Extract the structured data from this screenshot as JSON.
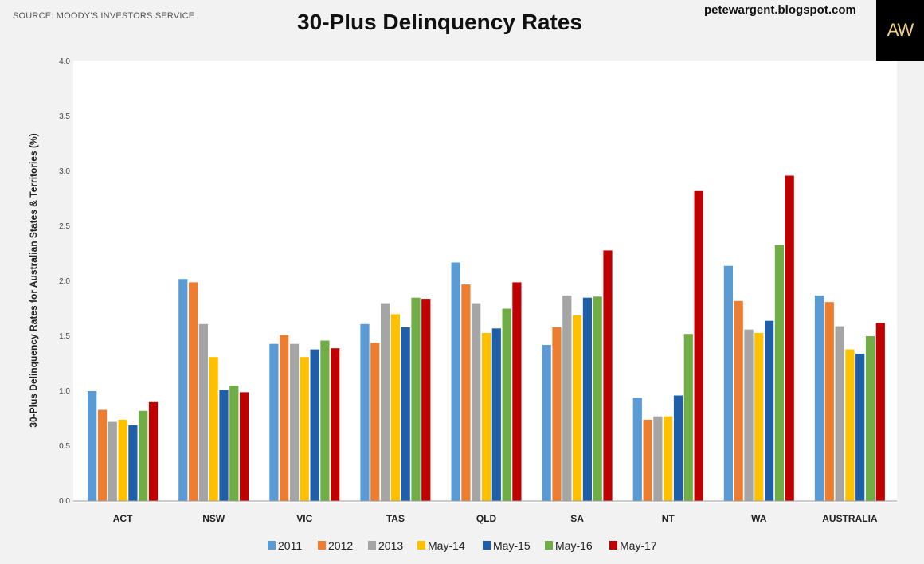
{
  "header": {
    "source": "SOURCE: MOODY'S INVESTORS SERVICE",
    "blog": "petewargent.blogspot.com",
    "logo_text": "AW"
  },
  "chart_data": {
    "type": "bar",
    "title": "30-Plus Delinquency Rates",
    "xlabel": "",
    "ylabel": "30-Plus Delinquency Rates for Australian States & Territories (%)",
    "ylim": [
      0,
      4
    ],
    "yticks": [
      "0.0",
      "0.5",
      "1.0",
      "1.5",
      "2.0",
      "2.5",
      "3.0",
      "3.5",
      "4.0"
    ],
    "grid": false,
    "legend_position": "bottom",
    "categories": [
      "ACT",
      "NSW",
      "VIC",
      "TAS",
      "QLD",
      "SA",
      "NT",
      "WA",
      "AUSTRALIA"
    ],
    "series": [
      {
        "name": "2011",
        "color": "#5b9bd5",
        "values": [
          1.0,
          2.02,
          1.43,
          1.61,
          2.17,
          1.42,
          0.94,
          2.14,
          1.87
        ]
      },
      {
        "name": "2012",
        "color": "#ed7d31",
        "values": [
          0.83,
          1.99,
          1.51,
          1.44,
          1.97,
          1.58,
          0.74,
          1.82,
          1.81
        ]
      },
      {
        "name": "2013",
        "color": "#a5a5a5",
        "values": [
          0.72,
          1.61,
          1.43,
          1.8,
          1.8,
          1.87,
          0.77,
          1.56,
          1.59
        ]
      },
      {
        "name": "May-14",
        "color": "#ffc000",
        "values": [
          0.74,
          1.31,
          1.31,
          1.7,
          1.53,
          1.69,
          0.77,
          1.53,
          1.38
        ]
      },
      {
        "name": "May-15",
        "color": "#1f5fa8",
        "values": [
          0.69,
          1.01,
          1.38,
          1.58,
          1.57,
          1.85,
          0.96,
          1.64,
          1.34
        ]
      },
      {
        "name": "May-16",
        "color": "#70ad47",
        "values": [
          0.82,
          1.05,
          1.46,
          1.85,
          1.75,
          1.86,
          1.52,
          2.33,
          1.5
        ]
      },
      {
        "name": "May-17",
        "color": "#c00000",
        "values": [
          0.9,
          0.99,
          1.39,
          1.84,
          1.99,
          2.28,
          2.82,
          2.96,
          1.62
        ]
      }
    ]
  }
}
